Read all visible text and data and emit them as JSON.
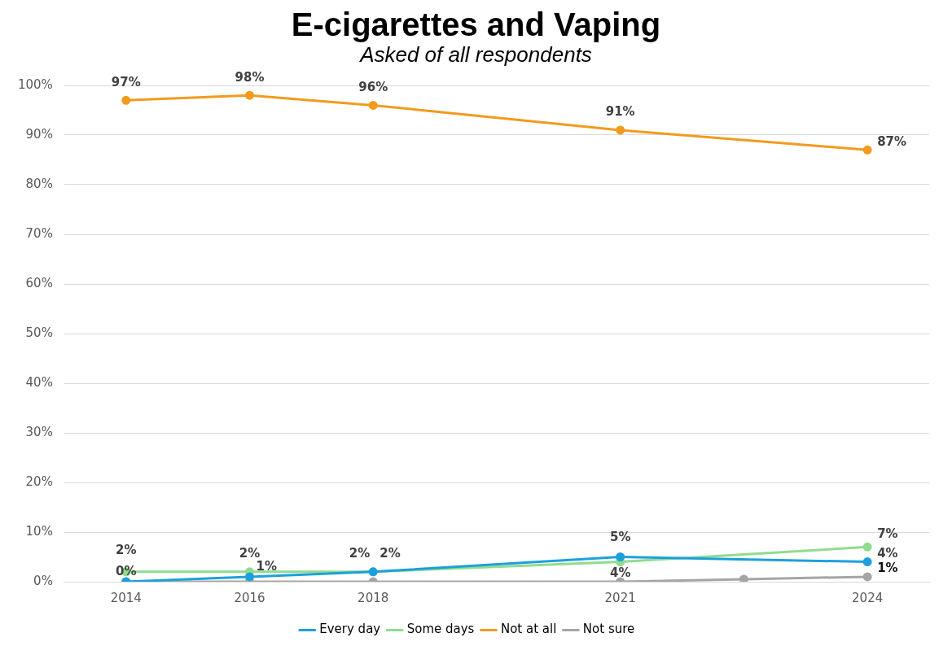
{
  "chart_data": {
    "type": "line",
    "title": "E-cigarettes and Vaping",
    "subtitle": "Asked of all respondents",
    "categories": [
      "2014",
      "2016",
      "2018",
      null,
      "2021",
      null,
      "2024"
    ],
    "series": [
      {
        "name": "Every day",
        "color": "#1ca0dc",
        "values": [
          0,
          1,
          2,
          null,
          5,
          null,
          4
        ],
        "value_labels": [
          "0%",
          "1%",
          "2%",
          null,
          "5%",
          null,
          "4%"
        ]
      },
      {
        "name": "Some days",
        "color": "#8fdc8f",
        "values": [
          2,
          2,
          2,
          null,
          4,
          null,
          7
        ],
        "value_labels": [
          "2%",
          "2%",
          "2%",
          null,
          "4%",
          null,
          "7%"
        ]
      },
      {
        "name": "Not at all",
        "color": "#f39a1e",
        "values": [
          97,
          98,
          96,
          null,
          91,
          null,
          87
        ],
        "value_labels": [
          "97%",
          "98%",
          "96%",
          null,
          "91%",
          null,
          "87%"
        ]
      },
      {
        "name": "Not sure",
        "color": "#a5a5a5",
        "values": [
          0,
          0,
          0,
          null,
          0,
          0.5,
          1
        ],
        "value_labels": [
          null,
          null,
          null,
          null,
          null,
          null,
          "1%"
        ]
      }
    ],
    "ylim": [
      0,
      100
    ],
    "yticks": [
      {
        "value": 0,
        "label": "0%"
      },
      {
        "value": 10,
        "label": "10%"
      },
      {
        "value": 20,
        "label": "20%"
      },
      {
        "value": 30,
        "label": "30%"
      },
      {
        "value": 40,
        "label": "40%"
      },
      {
        "value": 50,
        "label": "50%"
      },
      {
        "value": 60,
        "label": "60%"
      },
      {
        "value": 70,
        "label": "70%"
      },
      {
        "value": 80,
        "label": "80%"
      },
      {
        "value": 90,
        "label": "90%"
      },
      {
        "value": 100,
        "label": "100%"
      }
    ],
    "grid": "y",
    "legend": "bottom",
    "marker": "circle",
    "line_style": "solid"
  }
}
